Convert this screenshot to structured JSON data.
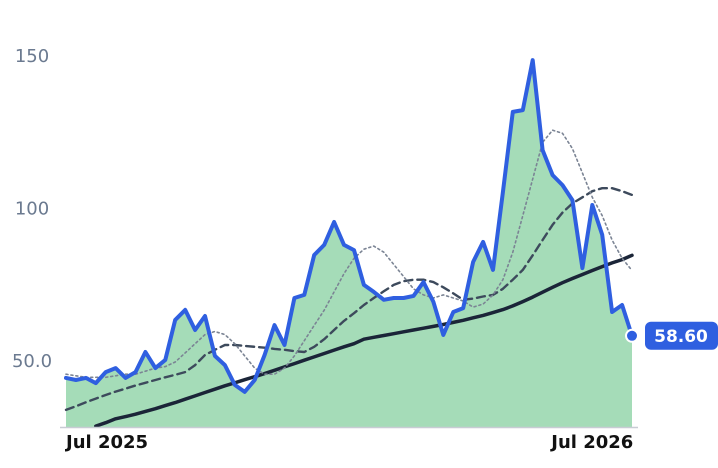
{
  "chart_data": {
    "type": "line",
    "categories": [
      "Jul 2025",
      null,
      null,
      null,
      null,
      null,
      null,
      null,
      null,
      null,
      null,
      null,
      null,
      null,
      null,
      null,
      null,
      null,
      null,
      null,
      null,
      null,
      null,
      null,
      null,
      null,
      null,
      null,
      null,
      null,
      null,
      null,
      null,
      null,
      null,
      null,
      null,
      null,
      null,
      null,
      null,
      null,
      null,
      null,
      null,
      null,
      null,
      null,
      null,
      null,
      null,
      null,
      null,
      "Jul 2026",
      null,
      null,
      null,
      null
    ],
    "ylim": [
      28.7,
      168.7
    ],
    "yticks": [
      {
        "value": 50,
        "label": "50.0"
      },
      100,
      150
    ],
    "grid": false,
    "area_color": "#8fd3a6",
    "series": [
      {
        "color": "#2f5fe0",
        "linestyle": "solid",
        "fill": true,
        "values": [
          44.8,
          44.1,
          44.8,
          43.1,
          46.7,
          48.0,
          44.8,
          46.7,
          53.3,
          48.0,
          50.7,
          63.8,
          67.1,
          60.5,
          65.1,
          52.0,
          49.0,
          42.5,
          40.2,
          44.1,
          52.3,
          62.1,
          55.6,
          71.0,
          72.0,
          85.1,
          88.4,
          95.9,
          88.4,
          86.7,
          75.3,
          73.0,
          70.4,
          71.0,
          71.0,
          71.7,
          76.2,
          69.7,
          58.9,
          66.4,
          67.7,
          82.8,
          89.4,
          80.2,
          105.7,
          132.0,
          132.6,
          149.0,
          119.5,
          111.3,
          108.0,
          103.1,
          80.8,
          101.5,
          91.7,
          66.4,
          68.7,
          58.6
        ],
        "value_labels": [
          null,
          null,
          null,
          null,
          null,
          null,
          null,
          null,
          null,
          null,
          null,
          null,
          null,
          null,
          null,
          null,
          null,
          null,
          null,
          null,
          null,
          null,
          null,
          null,
          null,
          null,
          null,
          null,
          null,
          null,
          null,
          null,
          null,
          null,
          null,
          null,
          null,
          null,
          null,
          null,
          null,
          null,
          null,
          null,
          null,
          null,
          null,
          null,
          null,
          null,
          null,
          null,
          null,
          null,
          null,
          null,
          null,
          "58.60"
        ]
      },
      {
        "color": "#7b8494",
        "linestyle": "dotted",
        "values": [
          46,
          45.5,
          45,
          45,
          45,
          45.5,
          46,
          46,
          47,
          48,
          48.5,
          50,
          53,
          56,
          59,
          60,
          59,
          56,
          52,
          48,
          46,
          46,
          48,
          52,
          57,
          62,
          67,
          73,
          79,
          84,
          87,
          88,
          86,
          82,
          78,
          74,
          72,
          71,
          72,
          71,
          70,
          68,
          69,
          72,
          77,
          86,
          98,
          110,
          122,
          126,
          125,
          120,
          112,
          104,
          98,
          90,
          84,
          80
        ]
      },
      {
        "color": "#3d4a5c",
        "linestyle": "dashed",
        "values": [
          34.3,
          35.5,
          36.8,
          38.0,
          39.2,
          40.3,
          41.3,
          42.3,
          43.2,
          44.1,
          45.0,
          45.8,
          46.7,
          49.0,
          52.3,
          54.0,
          55.6,
          55.6,
          55.3,
          55.0,
          54.7,
          54.3,
          54.0,
          53.6,
          53.3,
          55.0,
          57.5,
          60.5,
          63.5,
          66.0,
          68.7,
          71.0,
          73.2,
          75.3,
          76.5,
          77.0,
          77.0,
          76.2,
          74.5,
          72.5,
          70.4,
          70.8,
          71.5,
          72.0,
          74.0,
          77.0,
          80.2,
          85.0,
          90.0,
          95.0,
          99.0,
          102.0,
          104.0,
          106.0,
          107.0,
          107.0,
          106.0,
          104.8
        ]
      },
      {
        "color": "#1b2538",
        "linestyle": "solid",
        "values": [
          null,
          null,
          null,
          29.0,
          30.1,
          31.4,
          32.1,
          32.9,
          33.8,
          34.7,
          35.7,
          36.7,
          37.8,
          38.9,
          40.0,
          41.1,
          42.2,
          43.2,
          44.2,
          45.2,
          46.2,
          47.3,
          48.4,
          49.5,
          50.6,
          51.7,
          52.8,
          53.9,
          55.0,
          56.0,
          57.5,
          58.1,
          58.7,
          59.3,
          59.9,
          60.5,
          61.1,
          61.7,
          62.3,
          63.0,
          63.7,
          64.5,
          65.3,
          66.2,
          67.2,
          68.4,
          69.8,
          71.3,
          72.9,
          74.5,
          76.0,
          77.4,
          78.7,
          80.0,
          81.3,
          82.5,
          83.6,
          85.0
        ]
      }
    ]
  }
}
